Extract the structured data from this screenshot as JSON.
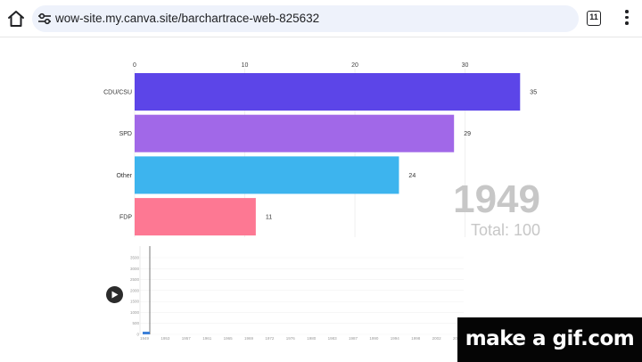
{
  "browser": {
    "url": "wow-site.my.canva.site/barchartrace-web-825632",
    "tab_count": "11"
  },
  "chart_data": {
    "type": "bar",
    "orientation": "horizontal",
    "categories": [
      "CDU/CSU",
      "SPD",
      "Other",
      "FDP"
    ],
    "values": [
      35,
      29,
      24,
      11
    ],
    "colors": [
      "#5c45e8",
      "#a168e8",
      "#3db4ee",
      "#fd7893"
    ],
    "xticks": [
      0,
      10,
      20,
      30
    ],
    "xlim": [
      0,
      37
    ],
    "grid": true,
    "year": "1949",
    "total_label": "Total: 100"
  },
  "timeline": {
    "yticks": [
      "3500",
      "3000",
      "2500",
      "2000",
      "1500",
      "1000",
      "500",
      "0"
    ],
    "xticks": [
      "1949",
      "1953",
      "1957",
      "1961",
      "1965",
      "1969",
      "1972",
      "1976",
      "1980",
      "1983",
      "1987",
      "1990",
      "1994",
      "1998",
      "2002",
      "2005"
    ]
  },
  "watermark": {
    "text": "make a gif.com"
  }
}
